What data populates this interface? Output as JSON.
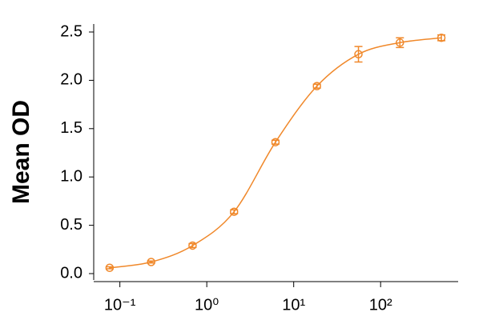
{
  "chart_data": {
    "type": "scatter",
    "y_label": "Mean OD",
    "log_x": true,
    "color": "#f0882a",
    "x": [
      0.0762,
      0.229,
      0.686,
      2.06,
      6.17,
      18.5,
      55.6,
      166.7,
      500
    ],
    "series": [
      {
        "values": [
          0.06,
          0.12,
          0.29,
          0.64,
          1.36,
          1.94,
          2.27,
          2.39,
          2.44
        ],
        "errors": [
          0.01,
          0.01,
          0.02,
          0.02,
          0.02,
          0.02,
          0.08,
          0.05,
          0.03
        ]
      }
    ],
    "xlim": [
      0.05,
      780
    ],
    "ylim": [
      0,
      2.5
    ],
    "xticks": [
      {
        "value": 0.1,
        "label": "10⁻¹"
      },
      {
        "value": 1,
        "label": "10⁰"
      },
      {
        "value": 10,
        "label": "10¹"
      },
      {
        "value": 100,
        "label": "10²"
      }
    ],
    "yticks": [
      {
        "value": 0,
        "label": "0.0"
      },
      {
        "value": 0.5,
        "label": "0.5"
      },
      {
        "value": 1,
        "label": "1.0"
      },
      {
        "value": 1.5,
        "label": "1.5"
      },
      {
        "value": 2,
        "label": "2.0"
      },
      {
        "value": 2.5,
        "label": "2.5"
      }
    ]
  }
}
